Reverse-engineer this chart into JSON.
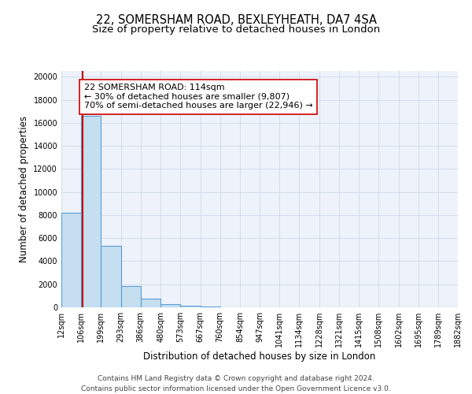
{
  "title": "22, SOMERSHAM ROAD, BEXLEYHEATH, DA7 4SA",
  "subtitle": "Size of property relative to detached houses in London",
  "xlabel": "Distribution of detached houses by size in London",
  "ylabel": "Number of detached properties",
  "bin_edges": [
    12,
    106,
    199,
    293,
    386,
    480,
    573,
    667,
    760,
    854,
    947,
    1041,
    1134,
    1228,
    1321,
    1415,
    1508,
    1602,
    1695,
    1789,
    1882
  ],
  "bar_heights": [
    8200,
    16600,
    5300,
    1850,
    750,
    300,
    150,
    100,
    0,
    0,
    0,
    0,
    0,
    0,
    0,
    0,
    0,
    0,
    0,
    0
  ],
  "bar_color": "#c5dff0",
  "bar_edge_color": "#5b9bd5",
  "vline_x": 114,
  "vline_color": "#cc0000",
  "annotation_line1": "22 SOMERSHAM ROAD: 114sqm",
  "annotation_line2": "← 30% of detached houses are smaller (9,807)",
  "annotation_line3": "70% of semi-detached houses are larger (22,946) →",
  "ylim": [
    0,
    20500
  ],
  "yticks": [
    0,
    2000,
    4000,
    6000,
    8000,
    10000,
    12000,
    14000,
    16000,
    18000,
    20000
  ],
  "tick_labels": [
    "12sqm",
    "106sqm",
    "199sqm",
    "293sqm",
    "386sqm",
    "480sqm",
    "573sqm",
    "667sqm",
    "760sqm",
    "854sqm",
    "947sqm",
    "1041sqm",
    "1134sqm",
    "1228sqm",
    "1321sqm",
    "1415sqm",
    "1508sqm",
    "1602sqm",
    "1695sqm",
    "1789sqm",
    "1882sqm"
  ],
  "footer_line1": "Contains HM Land Registry data © Crown copyright and database right 2024.",
  "footer_line2": "Contains public sector information licensed under the Open Government Licence v3.0.",
  "bg_color": "#eef2fa",
  "grid_color": "#c8d4e8",
  "title_fontsize": 10.5,
  "subtitle_fontsize": 9.5,
  "axis_label_fontsize": 8.5,
  "tick_fontsize": 7,
  "annotation_fontsize": 8,
  "footer_fontsize": 6.5
}
